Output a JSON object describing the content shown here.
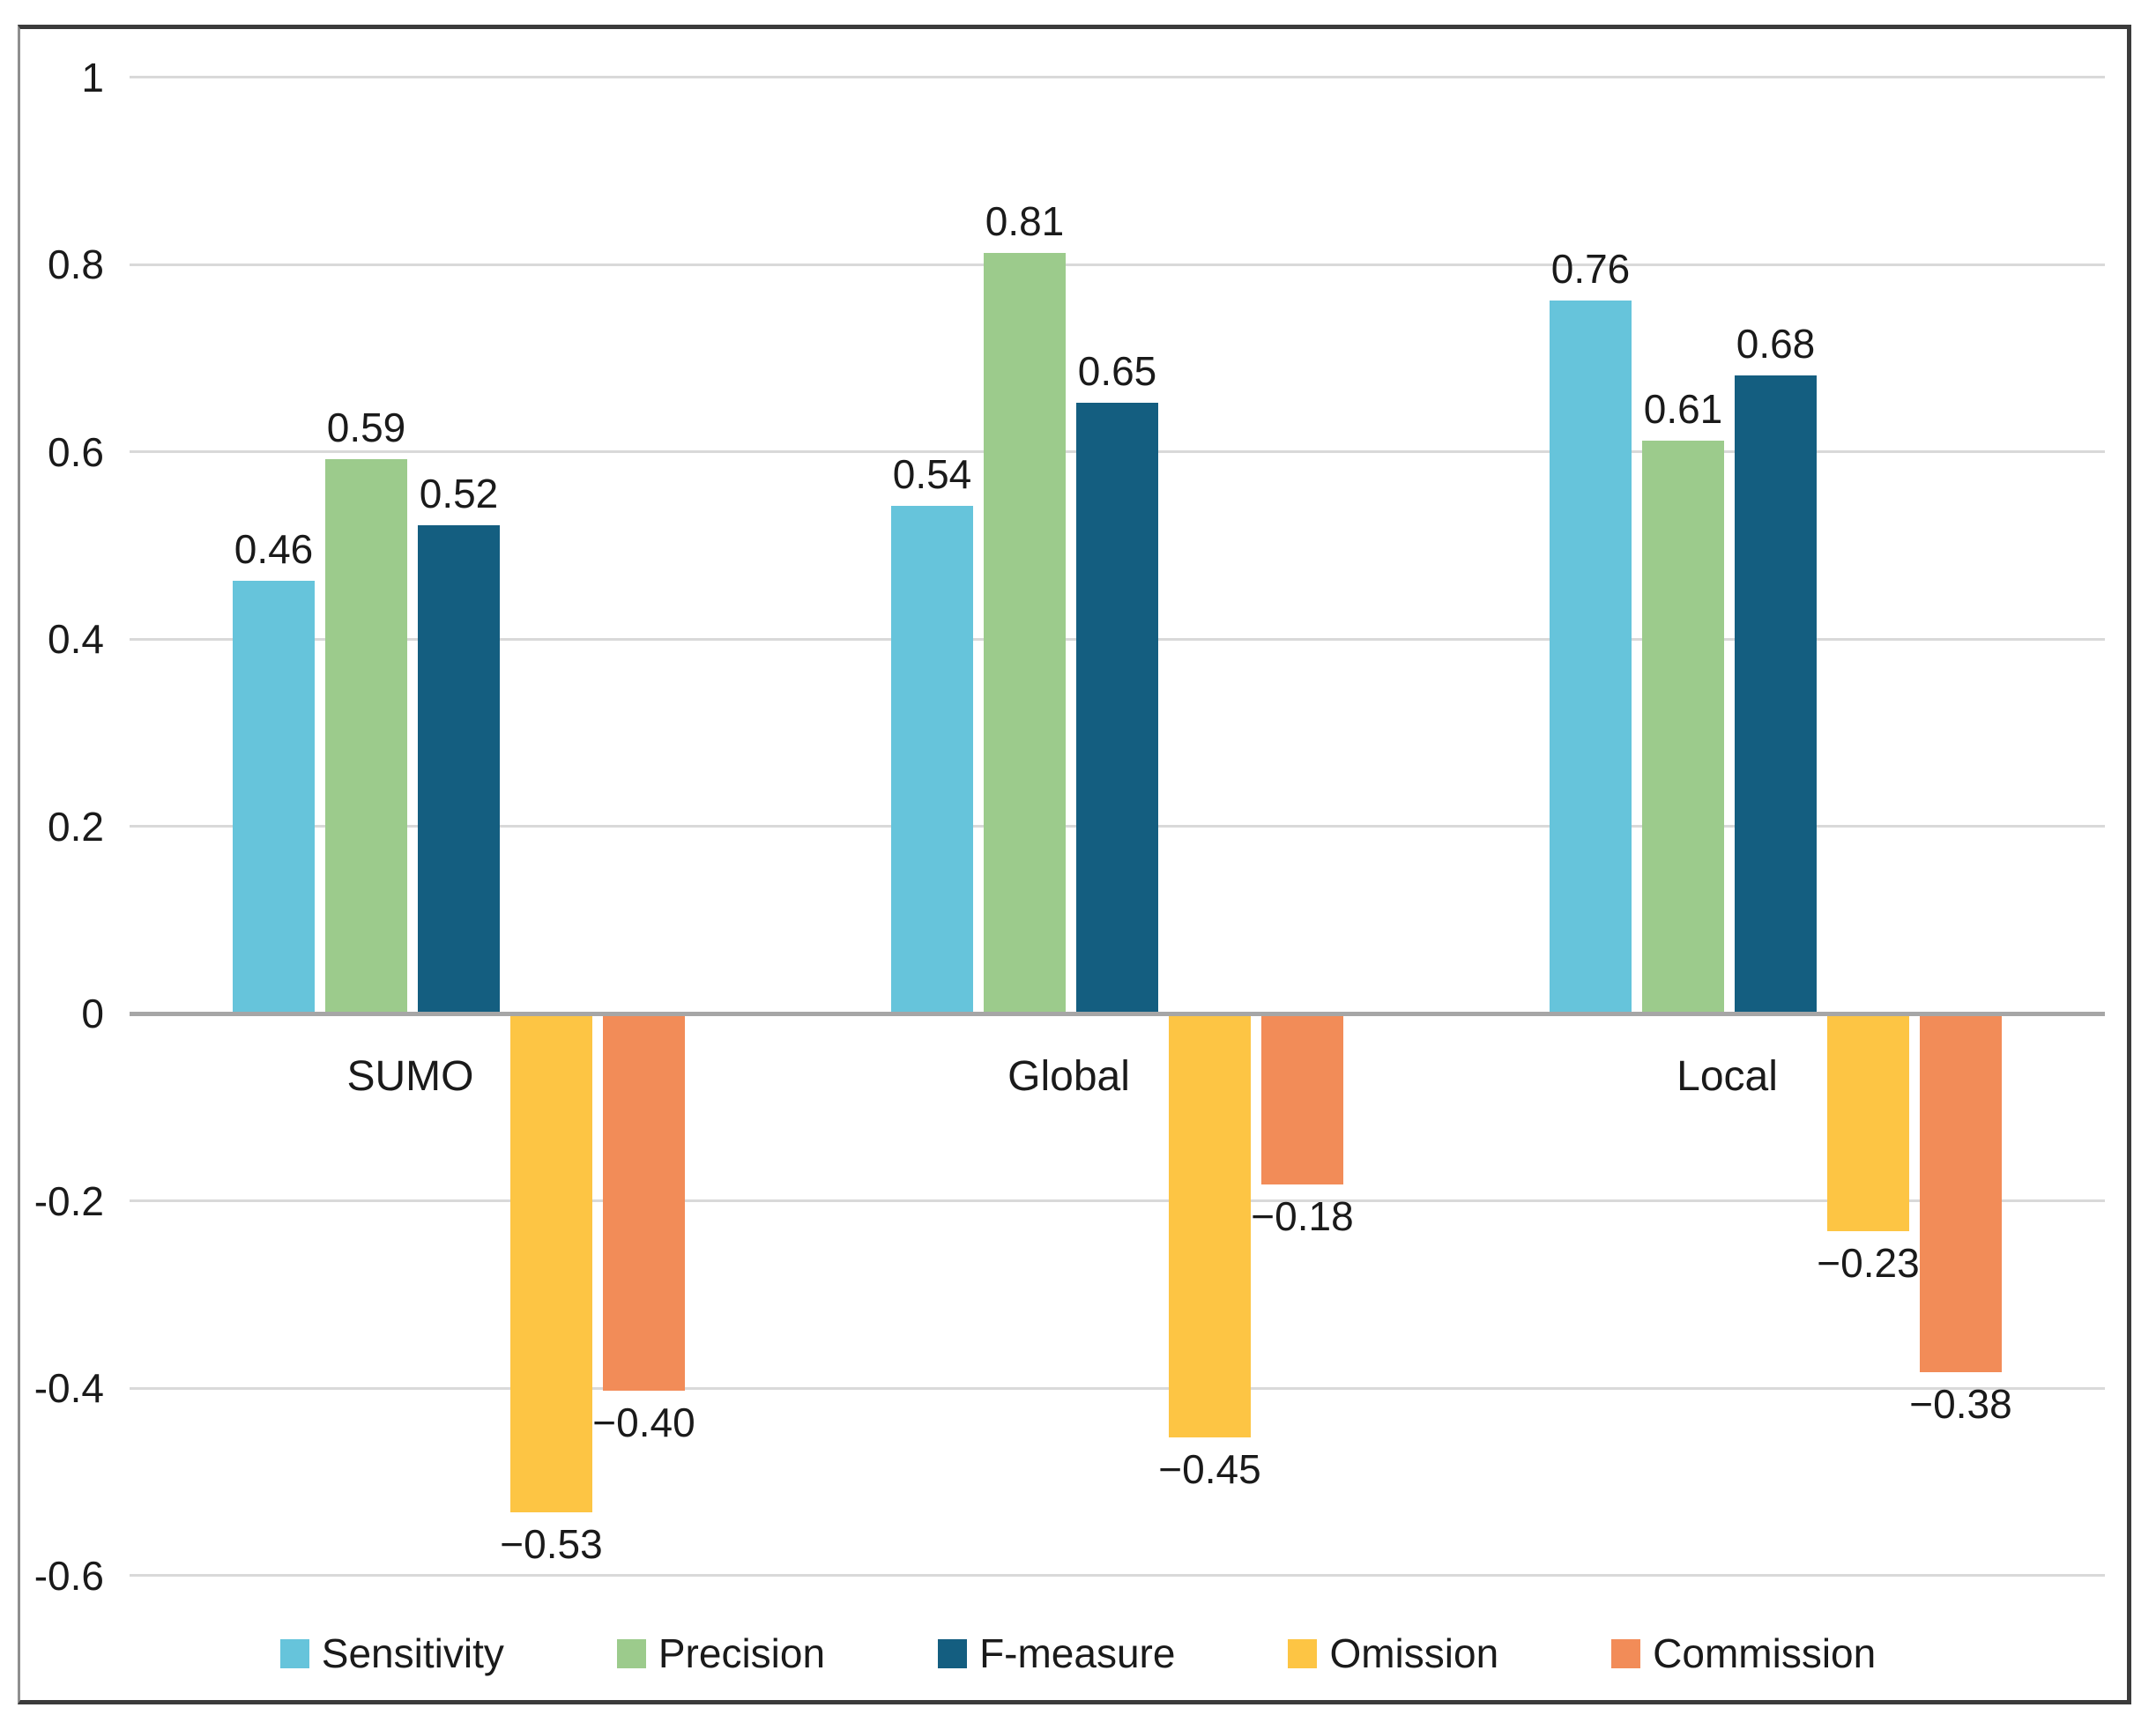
{
  "chart_data": {
    "type": "bar",
    "title": "",
    "xlabel": "",
    "ylabel": "",
    "categories": [
      "SUMO",
      "Global",
      "Local"
    ],
    "series": [
      {
        "name": "Sensitivity",
        "color": "#66c4db",
        "values": [
          0.46,
          0.54,
          0.76
        ],
        "labels": [
          "0.46",
          "0.54",
          "0.76"
        ]
      },
      {
        "name": "Precision",
        "color": "#9ccb8c",
        "values": [
          0.59,
          0.81,
          0.61
        ],
        "labels": [
          "0.59",
          "0.81",
          "0.61"
        ]
      },
      {
        "name": "F-measure",
        "color": "#145e80",
        "values": [
          0.52,
          0.65,
          0.68
        ],
        "labels": [
          "0.52",
          "0.65",
          "0.68"
        ]
      },
      {
        "name": "Omission",
        "color": "#fdc544",
        "values": [
          -0.53,
          -0.45,
          -0.23
        ],
        "labels": [
          "−0.53",
          "−0.45",
          "−0.23"
        ]
      },
      {
        "name": "Commission",
        "color": "#f28c58",
        "values": [
          -0.4,
          -0.18,
          -0.38
        ],
        "labels": [
          "−0.40",
          "−0.18",
          "−0.38"
        ]
      }
    ],
    "yticks": [
      {
        "value": 1,
        "label": "1"
      },
      {
        "value": 0.8,
        "label": "0.8"
      },
      {
        "value": 0.6,
        "label": "0.6"
      },
      {
        "value": 0.4,
        "label": "0.4"
      },
      {
        "value": 0.2,
        "label": "0.2"
      },
      {
        "value": 0,
        "label": "0"
      },
      {
        "value": -0.2,
        "label": "-0.2"
      },
      {
        "value": -0.4,
        "label": "-0.4"
      },
      {
        "value": -0.6,
        "label": "-0.6"
      }
    ],
    "ylim": [
      -0.6,
      1
    ],
    "grid": "horizontal",
    "legend_position": "bottom",
    "colors": {
      "gridline": "#d9d9d9",
      "zero_axis": "#a6a6a6",
      "text": "#1a1a1a",
      "frame": "#3b3b3b",
      "background": "#ffffff"
    }
  }
}
